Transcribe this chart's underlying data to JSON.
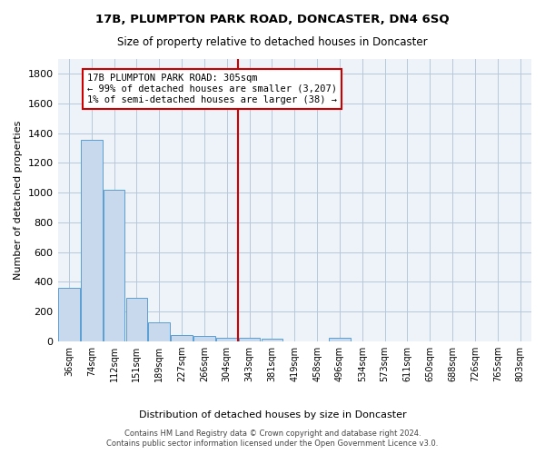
{
  "title": "17B, PLUMPTON PARK ROAD, DONCASTER, DN4 6SQ",
  "subtitle": "Size of property relative to detached houses in Doncaster",
  "xlabel": "Distribution of detached houses by size in Doncaster",
  "ylabel": "Number of detached properties",
  "footnote1": "Contains HM Land Registry data © Crown copyright and database right 2024.",
  "footnote2": "Contains public sector information licensed under the Open Government Licence v3.0.",
  "bar_color": "#c8d9ee",
  "bar_edge_color": "#5a9fd4",
  "grid_color": "#b8c8dc",
  "bin_labels": [
    "36sqm",
    "74sqm",
    "112sqm",
    "151sqm",
    "189sqm",
    "227sqm",
    "266sqm",
    "304sqm",
    "343sqm",
    "381sqm",
    "419sqm",
    "458sqm",
    "496sqm",
    "534sqm",
    "573sqm",
    "611sqm",
    "650sqm",
    "688sqm",
    "726sqm",
    "765sqm",
    "803sqm"
  ],
  "bar_heights": [
    360,
    1355,
    1020,
    290,
    125,
    42,
    35,
    25,
    22,
    18,
    0,
    0,
    22,
    0,
    0,
    0,
    0,
    0,
    0,
    0,
    0
  ],
  "ylim": [
    0,
    1900
  ],
  "yticks": [
    0,
    200,
    400,
    600,
    800,
    1000,
    1200,
    1400,
    1600,
    1800
  ],
  "property_line_x": 7.5,
  "annotation_title": "17B PLUMPTON PARK ROAD: 305sqm",
  "annotation_line1": "← 99% of detached houses are smaller (3,207)",
  "annotation_line2": "1% of semi-detached houses are larger (38) →",
  "vline_color": "#cc0000",
  "annotation_box_facecolor": "#ffffff",
  "annotation_box_edgecolor": "#cc0000",
  "plot_bg_color": "#eef2f9",
  "fig_bg_color": "#ffffff"
}
